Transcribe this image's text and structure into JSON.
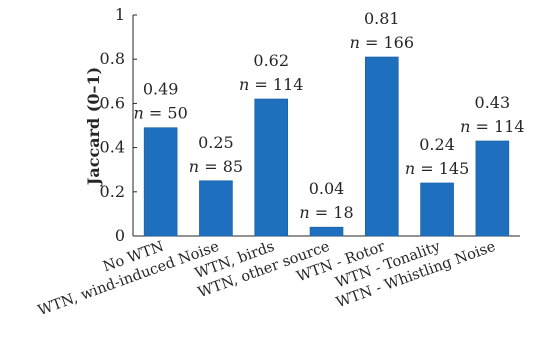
{
  "chart_data": {
    "type": "bar",
    "categories": [
      "No WTN",
      "WTN, wind-induced Noise",
      "WTN, birds",
      "WTN, other source",
      "WTN - Rotor",
      "WTN - Tonality",
      "WTN - Whistling Noise"
    ],
    "values": [
      0.49,
      0.25,
      0.62,
      0.04,
      0.81,
      0.24,
      0.43
    ],
    "value_labels": [
      "0.49",
      "0.25",
      "0.62",
      "0.04",
      "0.81",
      "0.24",
      "0.43"
    ],
    "counts": [
      50,
      85,
      114,
      18,
      166,
      145,
      114
    ],
    "n_prefix": "n",
    "ylabel": "Jaccard (0–1)",
    "ylim": [
      0,
      1
    ],
    "yticks": [
      0,
      0.2,
      0.4,
      0.6,
      0.8,
      1
    ],
    "ytick_labels": [
      "0",
      "0.2",
      "0.4",
      "0.6",
      "0.8",
      "1"
    ],
    "bar_color": "#1f6fbf",
    "grid": false
  }
}
